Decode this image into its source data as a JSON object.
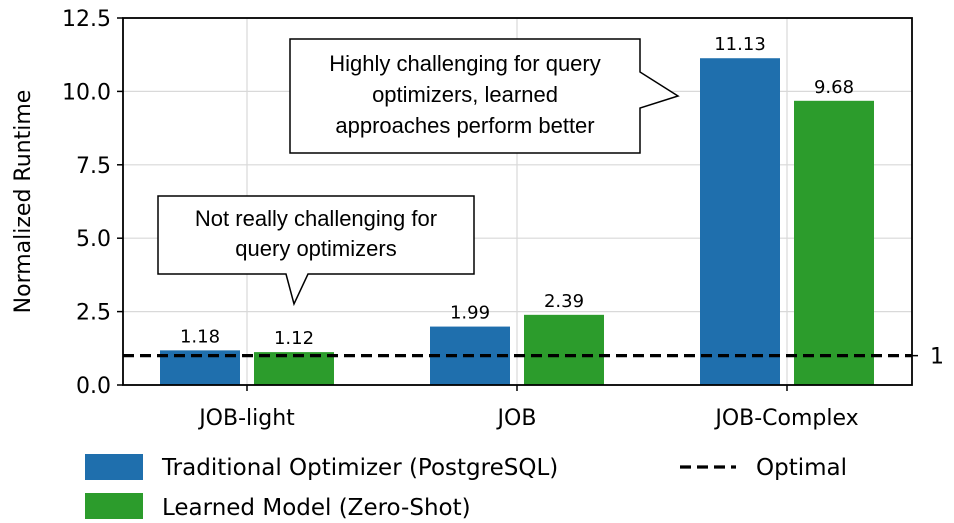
{
  "chart_data": {
    "type": "bar",
    "categories": [
      "JOB-light",
      "JOB",
      "JOB-Complex"
    ],
    "series": [
      {
        "name": "Traditional Optimizer (PostgreSQL)",
        "values": [
          1.18,
          1.99,
          11.13
        ],
        "color": "#1f6fad"
      },
      {
        "name": "Learned Model (Zero-Shot)",
        "values": [
          1.12,
          2.39,
          9.68
        ],
        "color": "#2c9c2c"
      }
    ],
    "value_labels": [
      [
        "1.18",
        "1.99",
        "11.13"
      ],
      [
        "1.12",
        "2.39",
        "9.68"
      ]
    ],
    "reference_line": {
      "name": "Optimal",
      "value": 1,
      "label": "1",
      "style": "dashed",
      "color": "#000000"
    },
    "ylabel": "Normalized Runtime",
    "xlabel": "",
    "ylim": [
      0,
      12.5
    ],
    "yticks": [
      "0.0",
      "2.5",
      "5.0",
      "7.5",
      "10.0",
      "12.5"
    ],
    "ytick_values": [
      0,
      2.5,
      5,
      7.5,
      10,
      12.5
    ],
    "grid": true,
    "legend_placement": "bottom",
    "annotations": [
      {
        "lines": [
          "Not really challenging for",
          "query optimizers"
        ],
        "target": "JOB-light",
        "pointer": "down"
      },
      {
        "lines": [
          "Highly challenging for query",
          "optimizers, learned",
          "approaches perform better"
        ],
        "target": "JOB-Complex",
        "pointer": "right"
      }
    ]
  }
}
